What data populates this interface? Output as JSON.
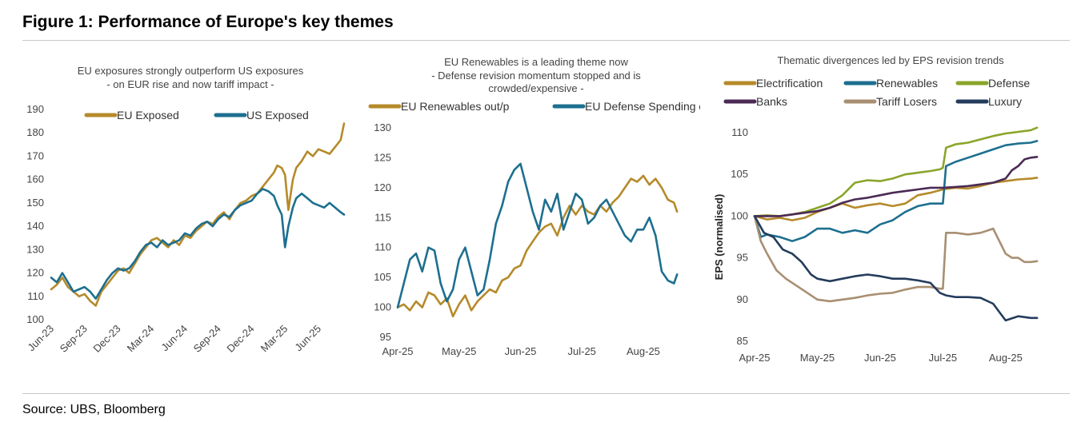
{
  "figure": {
    "title": "Figure 1: Performance of Europe's key themes",
    "source": "Source: UBS, Bloomberg"
  },
  "colors": {
    "gold": "#b58a2a",
    "blue": "#1d6f8f",
    "green": "#8aa52a",
    "purple": "#4b2a55",
    "tan": "#a88f72",
    "navy": "#243c5c"
  },
  "chart_data": [
    {
      "type": "line",
      "title": [
        "EU exposures strongly outperform US exposures",
        "- on EUR rise and now tariff impact -"
      ],
      "xlabel": "",
      "ylabel": "",
      "ylim": [
        100,
        190
      ],
      "yticks": [
        100,
        110,
        120,
        130,
        140,
        150,
        160,
        170,
        180,
        190
      ],
      "xlim": [
        0,
        26.3
      ],
      "xticks": [
        {
          "x": 0,
          "label": "Jun-23"
        },
        {
          "x": 3,
          "label": "Sep-23"
        },
        {
          "x": 6,
          "label": "Dec-23"
        },
        {
          "x": 9,
          "label": "Mar-24"
        },
        {
          "x": 12,
          "label": "Jun-24"
        },
        {
          "x": 15,
          "label": "Sep-24"
        },
        {
          "x": 18,
          "label": "Dec-24"
        },
        {
          "x": 21,
          "label": "Mar-25"
        },
        {
          "x": 24,
          "label": "Jun-25"
        }
      ],
      "legend_position": "top",
      "series": [
        {
          "name": "EU Exposed",
          "color": "#b58a2a",
          "x": [
            0,
            0.5,
            1,
            1.5,
            2,
            2.5,
            3,
            3.5,
            4,
            4.5,
            5,
            5.5,
            6,
            6.5,
            7,
            7.5,
            8,
            8.5,
            9,
            9.5,
            10,
            10.5,
            11,
            11.5,
            12,
            12.5,
            13,
            13.5,
            14,
            14.5,
            15,
            15.5,
            16,
            16.5,
            17,
            17.5,
            18,
            18.5,
            19,
            19.5,
            20,
            20.3,
            20.7,
            21,
            21.3,
            21.7,
            22,
            22.5,
            23,
            23.5,
            24,
            24.5,
            25,
            25.5,
            26,
            26.3
          ],
          "values": [
            113,
            115,
            118,
            114,
            112,
            110,
            111,
            108,
            106,
            112,
            115,
            118,
            121,
            122,
            120,
            124,
            128,
            131,
            134,
            135,
            133,
            131,
            134,
            132,
            136,
            135,
            138,
            140,
            142,
            141,
            144,
            146,
            143,
            147,
            150,
            151,
            153,
            154,
            157,
            160,
            163,
            166,
            165,
            162,
            147,
            160,
            165,
            168,
            172,
            170,
            173,
            172,
            171,
            174,
            177,
            184
          ]
        },
        {
          "name": "US Exposed",
          "color": "#1d6f8f",
          "x": [
            0,
            0.5,
            1,
            1.5,
            2,
            2.5,
            3,
            3.5,
            4,
            4.5,
            5,
            5.5,
            6,
            6.5,
            7,
            7.5,
            8,
            8.5,
            9,
            9.5,
            10,
            10.5,
            11,
            11.5,
            12,
            12.5,
            13,
            13.5,
            14,
            14.5,
            15,
            15.5,
            16,
            16.5,
            17,
            17.5,
            18,
            18.5,
            19,
            19.5,
            20,
            20.3,
            20.7,
            21,
            21.3,
            21.7,
            22,
            22.5,
            23,
            23.5,
            24,
            24.5,
            25,
            25.5,
            26,
            26.3
          ],
          "values": [
            118,
            116,
            120,
            116,
            112,
            113,
            114,
            112,
            109,
            113,
            117,
            120,
            122,
            121,
            122,
            125,
            129,
            132,
            133,
            131,
            134,
            132,
            133,
            134,
            137,
            136,
            139,
            141,
            142,
            140,
            143,
            145,
            144,
            147,
            149,
            150,
            151,
            154,
            156,
            155,
            153,
            149,
            145,
            131,
            140,
            148,
            152,
            154,
            152,
            150,
            149,
            148,
            150,
            148,
            146,
            145
          ]
        }
      ]
    },
    {
      "type": "line",
      "title": [
        "EU Renewables is a leading theme now",
        "- Defense revision momentum stopped and is",
        "crowded/expensive -"
      ],
      "xlabel": "",
      "ylabel": "",
      "ylim": [
        95,
        130
      ],
      "yticks": [
        95,
        100,
        105,
        110,
        115,
        120,
        125,
        130
      ],
      "xlim": [
        0,
        4.6
      ],
      "xticks": [
        {
          "x": 0,
          "label": "Apr-25"
        },
        {
          "x": 1,
          "label": "May-25"
        },
        {
          "x": 2,
          "label": "Jun-25"
        },
        {
          "x": 3,
          "label": "Jul-25"
        },
        {
          "x": 4,
          "label": "Aug-25"
        }
      ],
      "legend_position": "top",
      "series": [
        {
          "name": "EU Renewables out/p",
          "color": "#b58a2a",
          "x": [
            0,
            0.1,
            0.2,
            0.3,
            0.4,
            0.5,
            0.6,
            0.7,
            0.8,
            0.9,
            1,
            1.1,
            1.2,
            1.3,
            1.4,
            1.5,
            1.6,
            1.7,
            1.8,
            1.9,
            2,
            2.1,
            2.2,
            2.3,
            2.4,
            2.5,
            2.6,
            2.7,
            2.8,
            2.9,
            3,
            3.1,
            3.2,
            3.3,
            3.4,
            3.5,
            3.6,
            3.7,
            3.8,
            3.9,
            4,
            4.1,
            4.2,
            4.3,
            4.4,
            4.5,
            4.55
          ],
          "values": [
            100,
            100.5,
            99.5,
            101,
            100,
            102.5,
            102,
            100.5,
            101.5,
            98.5,
            100.5,
            102,
            99.5,
            101,
            102,
            103,
            102.5,
            104.5,
            105,
            106.5,
            107,
            109.5,
            111,
            112.5,
            113.5,
            114,
            112,
            115,
            117,
            115.5,
            117,
            116,
            115.5,
            117,
            116,
            117.5,
            118.5,
            120,
            121.5,
            121,
            122,
            120.5,
            121.5,
            120,
            118,
            117.5,
            116
          ]
        },
        {
          "name": "EU Defense Spending out/p",
          "color": "#1d6f8f",
          "x": [
            0,
            0.1,
            0.2,
            0.3,
            0.4,
            0.5,
            0.6,
            0.7,
            0.8,
            0.9,
            1,
            1.1,
            1.2,
            1.3,
            1.4,
            1.5,
            1.6,
            1.7,
            1.8,
            1.9,
            2,
            2.1,
            2.2,
            2.3,
            2.4,
            2.5,
            2.6,
            2.7,
            2.8,
            2.9,
            3,
            3.1,
            3.2,
            3.3,
            3.4,
            3.5,
            3.6,
            3.7,
            3.8,
            3.9,
            4,
            4.1,
            4.2,
            4.3,
            4.4,
            4.5,
            4.55
          ],
          "values": [
            100,
            104,
            108,
            109,
            106,
            110,
            109.5,
            104,
            101,
            103,
            108,
            110,
            106,
            102,
            103,
            108,
            114,
            117,
            121,
            123,
            124,
            120,
            116,
            113,
            118,
            116,
            119,
            113,
            116,
            119,
            118,
            114,
            115,
            117,
            118,
            116,
            114,
            112,
            111,
            113,
            113,
            115,
            112,
            106,
            104.5,
            104,
            105.5
          ]
        }
      ]
    },
    {
      "type": "line",
      "title": [
        "Thematic divergences led by EPS revision trends"
      ],
      "xlabel": "",
      "ylabel": "EPS (normalised)",
      "ylim": [
        85,
        110
      ],
      "yticks": [
        85,
        90,
        95,
        100,
        105,
        110
      ],
      "xlim": [
        0,
        4.55
      ],
      "xticks": [
        {
          "x": 0,
          "label": "Apr-25"
        },
        {
          "x": 1,
          "label": "May-25"
        },
        {
          "x": 2,
          "label": "Jun-25"
        },
        {
          "x": 3,
          "label": "Jul-25"
        },
        {
          "x": 4,
          "label": "Aug-25"
        }
      ],
      "legend_position": "top",
      "series": [
        {
          "name": "Electrification",
          "color": "#b58a2a",
          "x": [
            0,
            0.2,
            0.4,
            0.6,
            0.8,
            1,
            1.2,
            1.4,
            1.6,
            1.8,
            2,
            2.2,
            2.4,
            2.6,
            2.8,
            3,
            3.2,
            3.4,
            3.6,
            3.8,
            4,
            4.2,
            4.4,
            4.5
          ],
          "values": [
            100,
            99.6,
            99.8,
            99.5,
            99.8,
            100.5,
            101,
            101.5,
            101,
            101.3,
            101.5,
            101.2,
            101.5,
            102.5,
            102.8,
            103.2,
            103.4,
            103.3,
            103.6,
            104,
            104.2,
            104.4,
            104.5,
            104.6
          ]
        },
        {
          "name": "Renewables",
          "color": "#1d6f8f",
          "x": [
            0,
            0.1,
            0.2,
            0.4,
            0.6,
            0.8,
            1,
            1.2,
            1.4,
            1.6,
            1.8,
            2,
            2.2,
            2.4,
            2.6,
            2.8,
            2.95,
            3,
            3.05,
            3.2,
            3.4,
            3.6,
            3.8,
            4,
            4.2,
            4.4,
            4.5
          ],
          "values": [
            100,
            97.5,
            97.8,
            97.5,
            97,
            97.5,
            98.5,
            98.5,
            98,
            98.3,
            98,
            99,
            99.5,
            100.5,
            101.2,
            101.5,
            101.5,
            101.5,
            106,
            106.5,
            107,
            107.5,
            108,
            108.5,
            108.7,
            108.8,
            109
          ]
        },
        {
          "name": "Defense",
          "color": "#8aa52a",
          "x": [
            0,
            0.2,
            0.4,
            0.6,
            0.8,
            1,
            1.2,
            1.4,
            1.6,
            1.8,
            2,
            2.2,
            2.4,
            2.6,
            2.8,
            2.95,
            3,
            3.05,
            3.2,
            3.4,
            3.6,
            3.8,
            4,
            4.2,
            4.4,
            4.5
          ],
          "values": [
            100,
            100.1,
            100,
            100.2,
            100.5,
            101,
            101.5,
            102.5,
            104,
            104.3,
            104.2,
            104.5,
            105,
            105.2,
            105.4,
            105.6,
            105.8,
            108.2,
            108.6,
            108.8,
            109.2,
            109.6,
            109.9,
            110.1,
            110.3,
            110.6
          ]
        },
        {
          "name": "Banks",
          "color": "#4b2a55",
          "x": [
            0,
            0.2,
            0.4,
            0.6,
            0.8,
            1,
            1.2,
            1.4,
            1.6,
            1.8,
            2,
            2.2,
            2.4,
            2.6,
            2.8,
            3,
            3.2,
            3.4,
            3.6,
            3.8,
            4,
            4.1,
            4.2,
            4.3,
            4.4,
            4.5
          ],
          "values": [
            100,
            100,
            100,
            100.2,
            100.4,
            100.6,
            101,
            101.6,
            102,
            102.2,
            102.5,
            102.8,
            103,
            103.2,
            103.4,
            103.4,
            103.5,
            103.6,
            103.8,
            104,
            104.5,
            105.5,
            106,
            106.8,
            107,
            107.1
          ]
        },
        {
          "name": "Tariff Losers",
          "color": "#a88f72",
          "x": [
            0,
            0.05,
            0.1,
            0.2,
            0.35,
            0.5,
            0.7,
            0.9,
            1,
            1.2,
            1.4,
            1.6,
            1.8,
            2,
            2.2,
            2.4,
            2.6,
            2.8,
            2.95,
            3,
            3.05,
            3.2,
            3.4,
            3.6,
            3.8,
            4,
            4.1,
            4.2,
            4.3,
            4.4,
            4.5
          ],
          "values": [
            100,
            98.5,
            97,
            95.5,
            93.5,
            92.5,
            91.5,
            90.5,
            90,
            89.8,
            90,
            90.2,
            90.5,
            90.7,
            90.8,
            91.2,
            91.5,
            91.5,
            91.3,
            91.3,
            98,
            98,
            97.8,
            98,
            98.5,
            95.5,
            95,
            95,
            94.5,
            94.5,
            94.6
          ]
        },
        {
          "name": "Luxury",
          "color": "#243c5c",
          "x": [
            0,
            0.15,
            0.3,
            0.45,
            0.6,
            0.75,
            0.9,
            1,
            1.2,
            1.4,
            1.6,
            1.8,
            2,
            2.2,
            2.4,
            2.6,
            2.8,
            2.95,
            3.05,
            3.2,
            3.4,
            3.6,
            3.8,
            3.9,
            4,
            4.2,
            4.4,
            4.5
          ],
          "values": [
            100,
            98,
            97.5,
            96,
            95.5,
            94.5,
            93,
            92.5,
            92.2,
            92.5,
            92.8,
            93,
            92.8,
            92.5,
            92.5,
            92.3,
            92,
            90.8,
            90.5,
            90.3,
            90.3,
            90.2,
            89.5,
            88.5,
            87.5,
            88,
            87.8,
            87.8
          ]
        }
      ]
    }
  ]
}
